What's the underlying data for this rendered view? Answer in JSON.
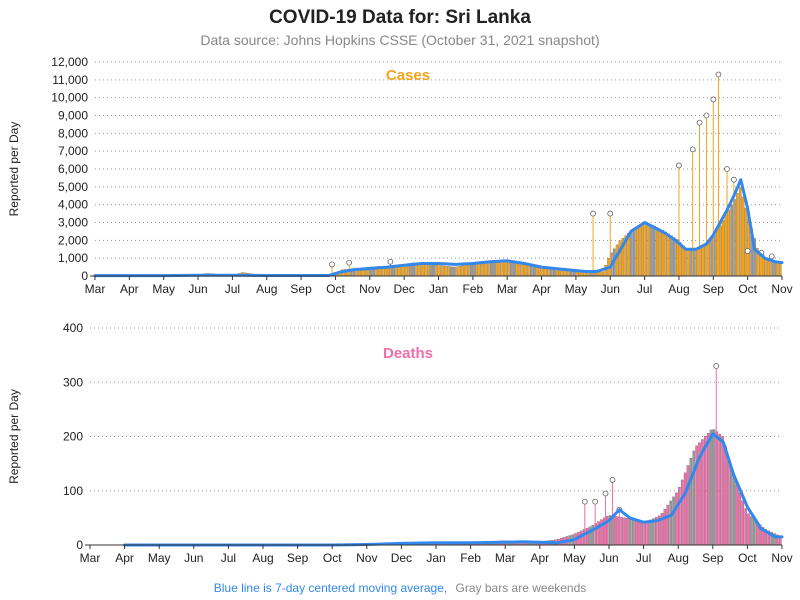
{
  "title": "COVID-19 Data for: Sri Lanka",
  "subtitle": "Data source: Johns Hopkins CSSE (October 31, 2021 snapshot)",
  "footer": {
    "blue_note": "Blue line is 7-day centered moving average,",
    "gray_note": "Gray bars are weekends"
  },
  "colors": {
    "cases_bar": "#F5A31A",
    "deaths_bar": "#F06EAA",
    "moving_average": "#3388EE",
    "grid": "#999999",
    "spike": "#777777"
  },
  "chart_data": [
    {
      "type": "bar",
      "id": "cases",
      "label": "Cases",
      "ylabel": "Reported per Day",
      "ylim": [
        0,
        12000
      ],
      "yticks": [
        0,
        1000,
        2000,
        3000,
        4000,
        5000,
        6000,
        7000,
        8000,
        9000,
        10000,
        11000,
        12000
      ],
      "ytick_labels": [
        "0",
        "1,000",
        "2,000",
        "3,000",
        "4,000",
        "5,000",
        "6,000",
        "7,000",
        "8,000",
        "9,000",
        "10,000",
        "11,000",
        "12,000"
      ],
      "xlim": [
        0,
        20
      ],
      "xtick_labels": [
        "Mar",
        "Apr",
        "May",
        "Jun",
        "Jul",
        "Aug",
        "Sep",
        "Oct",
        "Nov",
        "Dec",
        "Jan",
        "Feb",
        "Mar",
        "Apr",
        "May",
        "Jun",
        "Jul",
        "Aug",
        "Sep",
        "Oct",
        "Nov"
      ],
      "grid": "horizontal dotted",
      "series": [
        {
          "name": "Reported per Day",
          "x": [
            0,
            1,
            2,
            3,
            3.3,
            4,
            4.3,
            5,
            6,
            6.8,
            7.1,
            7.2,
            7.5,
            8,
            8.3,
            8.6,
            9,
            9.3,
            9.6,
            10,
            10.5,
            11,
            11.5,
            12,
            12.5,
            13,
            13.3,
            13.6,
            14,
            14.2,
            14.5,
            14.8,
            15,
            15.3,
            15.6,
            16,
            16.3,
            16.6,
            17,
            17.2,
            17.4,
            17.6,
            17.8,
            18,
            18.2,
            18.4,
            18.6,
            18.8,
            19,
            19.3,
            19.6,
            20
          ],
          "values": [
            0,
            10,
            30,
            60,
            150,
            20,
            200,
            10,
            5,
            30,
            250,
            350,
            400,
            500,
            550,
            450,
            600,
            750,
            700,
            600,
            500,
            700,
            800,
            900,
            700,
            500,
            400,
            400,
            300,
            250,
            200,
            250,
            1200,
            2000,
            2500,
            3000,
            2800,
            2500,
            2000,
            1500,
            1400,
            1600,
            1800,
            2200,
            2800,
            3500,
            4200,
            5000,
            3500,
            1500,
            900,
            700
          ]
        },
        {
          "name": "7-day average",
          "x": [
            0,
            1,
            2,
            3,
            4,
            5,
            6,
            6.8,
            7.1,
            7.5,
            8,
            8.5,
            9,
            9.5,
            10,
            10.5,
            11,
            11.5,
            12,
            12.5,
            13,
            13.5,
            14,
            14.3,
            14.6,
            15,
            15.3,
            15.6,
            16,
            16.3,
            16.6,
            16.9,
            17.2,
            17.5,
            17.8,
            18,
            18.2,
            18.4,
            18.6,
            18.8,
            19,
            19.2,
            19.5,
            19.8,
            20
          ],
          "values": [
            20,
            20,
            25,
            40,
            40,
            30,
            30,
            30,
            200,
            350,
            420,
            500,
            600,
            700,
            700,
            650,
            700,
            800,
            850,
            700,
            500,
            400,
            300,
            250,
            250,
            500,
            1500,
            2500,
            3000,
            2700,
            2400,
            2000,
            1500,
            1500,
            1800,
            2300,
            3000,
            3700,
            4500,
            5400,
            3800,
            1500,
            1000,
            800,
            750
          ]
        }
      ],
      "spikes": [
        {
          "x": 6.9,
          "value": 650
        },
        {
          "x": 7.4,
          "value": 750
        },
        {
          "x": 8.6,
          "value": 800
        },
        {
          "x": 14.5,
          "value": 3500
        },
        {
          "x": 15.0,
          "value": 3500
        },
        {
          "x": 17.0,
          "value": 6200
        },
        {
          "x": 17.4,
          "value": 7100
        },
        {
          "x": 17.6,
          "value": 8600
        },
        {
          "x": 17.8,
          "value": 9000
        },
        {
          "x": 18.0,
          "value": 9900
        },
        {
          "x": 18.15,
          "value": 11300
        },
        {
          "x": 18.4,
          "value": 6000
        },
        {
          "x": 18.6,
          "value": 5400
        },
        {
          "x": 19.0,
          "value": 1400
        },
        {
          "x": 19.4,
          "value": 1300
        },
        {
          "x": 19.7,
          "value": 1100
        }
      ]
    },
    {
      "type": "bar",
      "id": "deaths",
      "label": "Deaths",
      "ylabel": "Reported per Day",
      "ylim": [
        0,
        400
      ],
      "yticks": [
        0,
        100,
        200,
        300,
        400
      ],
      "ytick_labels": [
        "0",
        "100",
        "200",
        "300",
        "400"
      ],
      "xlim": [
        0,
        20
      ],
      "xtick_labels": [
        "Mar",
        "Apr",
        "May",
        "Jun",
        "Jul",
        "Aug",
        "Sep",
        "Oct",
        "Nov",
        "Dec",
        "Jan",
        "Feb",
        "Mar",
        "Apr",
        "May",
        "Jun",
        "Jul",
        "Aug",
        "Sep",
        "Oct",
        "Nov"
      ],
      "grid": "horizontal dotted",
      "series": [
        {
          "name": "Reported per Day",
          "x": [
            0,
            1,
            2,
            3,
            4,
            5,
            6,
            7,
            8,
            9,
            10,
            11,
            12,
            12.5,
            13,
            13.5,
            14,
            14.5,
            15,
            15.5,
            16,
            16.5,
            17,
            17.5,
            18,
            18.3,
            18.6,
            19,
            19.5,
            20
          ],
          "values": [
            0,
            0,
            0,
            0,
            0,
            0,
            0,
            0,
            0,
            2,
            3,
            5,
            8,
            7,
            6,
            10,
            20,
            35,
            55,
            50,
            40,
            55,
            100,
            180,
            215,
            200,
            130,
            60,
            30,
            15
          ]
        },
        {
          "name": "7-day average",
          "x": [
            1,
            2,
            3,
            4,
            5,
            6,
            7,
            8,
            9,
            10,
            11,
            12,
            12.5,
            13,
            13.5,
            14,
            14.3,
            14.6,
            15,
            15.3,
            15.6,
            16,
            16.4,
            16.8,
            17.2,
            17.6,
            18,
            18.3,
            18.6,
            19,
            19.4,
            19.8,
            20
          ],
          "values": [
            0,
            0,
            0,
            0,
            0,
            0,
            0,
            1,
            3,
            4,
            4,
            5,
            6,
            5,
            4,
            10,
            20,
            30,
            45,
            65,
            50,
            42,
            45,
            55,
            95,
            160,
            205,
            190,
            130,
            70,
            30,
            15,
            15
          ]
        }
      ],
      "spikes": [
        {
          "x": 14.3,
          "value": 80
        },
        {
          "x": 14.6,
          "value": 80
        },
        {
          "x": 14.9,
          "value": 95
        },
        {
          "x": 15.1,
          "value": 120
        },
        {
          "x": 15.3,
          "value": 65
        },
        {
          "x": 18.1,
          "value": 330
        }
      ]
    }
  ]
}
